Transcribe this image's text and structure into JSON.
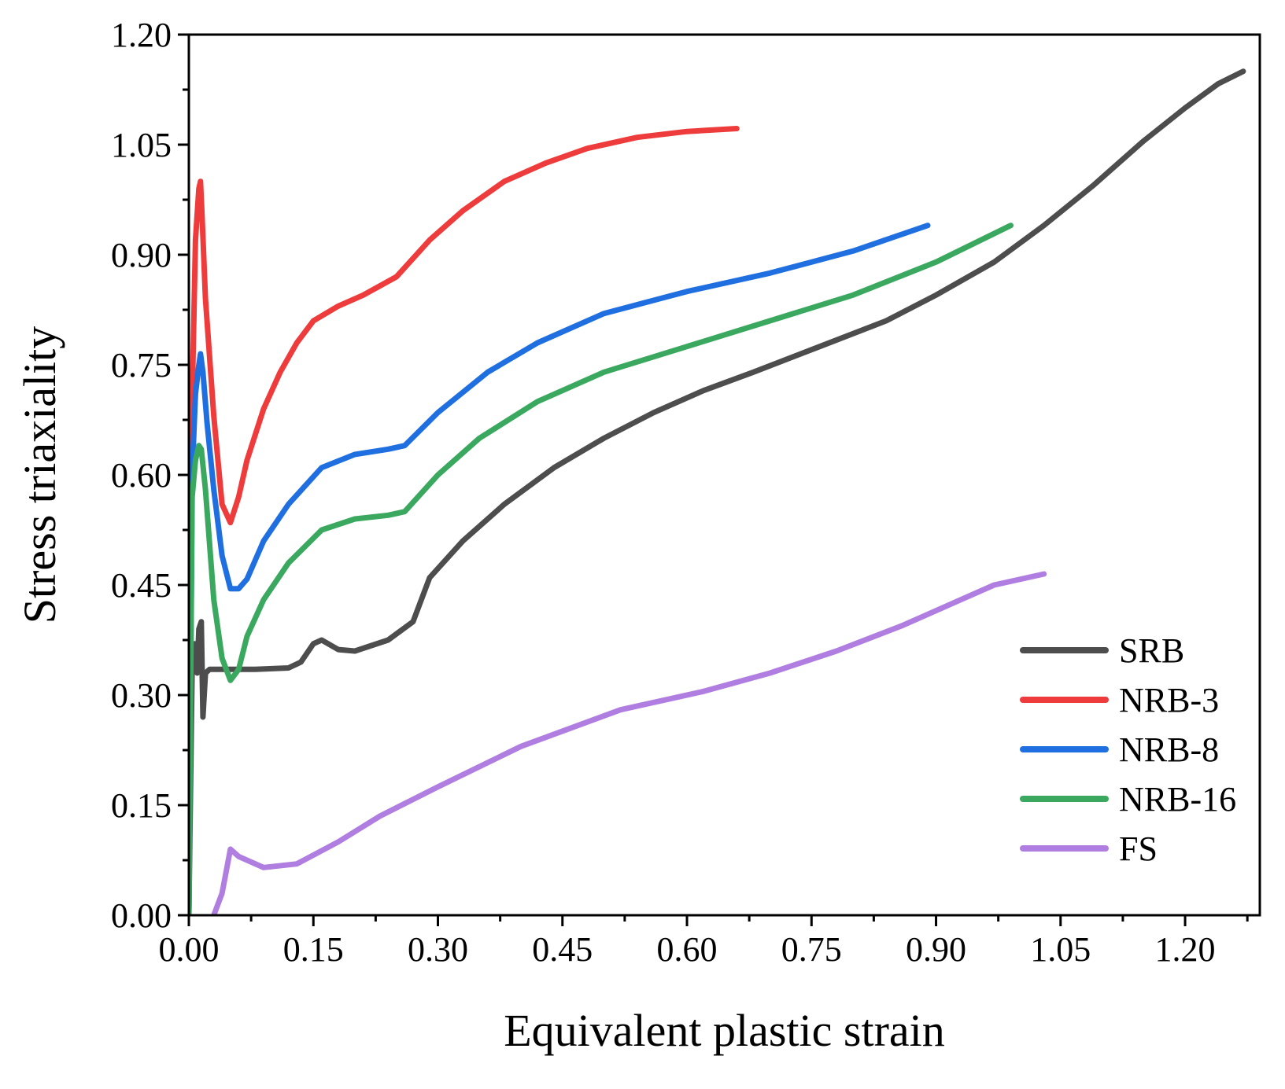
{
  "chart_data": {
    "type": "line",
    "title": "",
    "xlabel": "Equivalent plastic strain",
    "ylabel": "Stress triaxiality",
    "xlim": [
      0,
      1.29
    ],
    "ylim": [
      0,
      1.2
    ],
    "x_ticks": [
      "0.00",
      "0.15",
      "0.30",
      "0.45",
      "0.60",
      "0.75",
      "0.90",
      "1.05",
      "1.20"
    ],
    "y_ticks": [
      "0.00",
      "0.15",
      "0.30",
      "0.45",
      "0.60",
      "0.75",
      "0.90",
      "1.05",
      "1.20"
    ],
    "grid": false,
    "legend_position": "bottom-right",
    "series": [
      {
        "name": "SRB",
        "color": "#4d4d4d",
        "points": [
          [
            0.0,
            0.0
          ],
          [
            0.004,
            0.34
          ],
          [
            0.007,
            0.37
          ],
          [
            0.01,
            0.33
          ],
          [
            0.012,
            0.39
          ],
          [
            0.015,
            0.4
          ],
          [
            0.017,
            0.27
          ],
          [
            0.02,
            0.33
          ],
          [
            0.025,
            0.335
          ],
          [
            0.04,
            0.335
          ],
          [
            0.08,
            0.335
          ],
          [
            0.12,
            0.337
          ],
          [
            0.135,
            0.345
          ],
          [
            0.15,
            0.37
          ],
          [
            0.16,
            0.375
          ],
          [
            0.18,
            0.362
          ],
          [
            0.2,
            0.36
          ],
          [
            0.24,
            0.375
          ],
          [
            0.27,
            0.4
          ],
          [
            0.29,
            0.46
          ],
          [
            0.33,
            0.51
          ],
          [
            0.38,
            0.56
          ],
          [
            0.44,
            0.61
          ],
          [
            0.5,
            0.65
          ],
          [
            0.56,
            0.685
          ],
          [
            0.62,
            0.715
          ],
          [
            0.68,
            0.74
          ],
          [
            0.76,
            0.775
          ],
          [
            0.84,
            0.81
          ],
          [
            0.9,
            0.845
          ],
          [
            0.97,
            0.89
          ],
          [
            1.03,
            0.94
          ],
          [
            1.09,
            0.995
          ],
          [
            1.15,
            1.055
          ],
          [
            1.2,
            1.1
          ],
          [
            1.24,
            1.133
          ],
          [
            1.27,
            1.15
          ]
        ]
      },
      {
        "name": "NRB-3",
        "color": "#ee3b3b",
        "points": [
          [
            0.0,
            0.0
          ],
          [
            0.004,
            0.7
          ],
          [
            0.008,
            0.92
          ],
          [
            0.012,
            0.99
          ],
          [
            0.014,
            1.0
          ],
          [
            0.016,
            0.95
          ],
          [
            0.02,
            0.84
          ],
          [
            0.03,
            0.68
          ],
          [
            0.04,
            0.56
          ],
          [
            0.05,
            0.535
          ],
          [
            0.06,
            0.57
          ],
          [
            0.07,
            0.62
          ],
          [
            0.09,
            0.69
          ],
          [
            0.11,
            0.74
          ],
          [
            0.13,
            0.78
          ],
          [
            0.15,
            0.81
          ],
          [
            0.18,
            0.83
          ],
          [
            0.21,
            0.845
          ],
          [
            0.25,
            0.87
          ],
          [
            0.29,
            0.92
          ],
          [
            0.33,
            0.96
          ],
          [
            0.38,
            1.0
          ],
          [
            0.43,
            1.025
          ],
          [
            0.48,
            1.045
          ],
          [
            0.54,
            1.06
          ],
          [
            0.6,
            1.068
          ],
          [
            0.66,
            1.072
          ]
        ]
      },
      {
        "name": "NRB-8",
        "color": "#1f6fe0",
        "points": [
          [
            0.0,
            0.0
          ],
          [
            0.004,
            0.6
          ],
          [
            0.008,
            0.71
          ],
          [
            0.012,
            0.75
          ],
          [
            0.014,
            0.765
          ],
          [
            0.017,
            0.74
          ],
          [
            0.022,
            0.67
          ],
          [
            0.03,
            0.58
          ],
          [
            0.04,
            0.49
          ],
          [
            0.05,
            0.445
          ],
          [
            0.06,
            0.445
          ],
          [
            0.07,
            0.458
          ],
          [
            0.09,
            0.51
          ],
          [
            0.12,
            0.56
          ],
          [
            0.16,
            0.61
          ],
          [
            0.2,
            0.628
          ],
          [
            0.24,
            0.635
          ],
          [
            0.26,
            0.64
          ],
          [
            0.3,
            0.685
          ],
          [
            0.36,
            0.74
          ],
          [
            0.42,
            0.78
          ],
          [
            0.5,
            0.82
          ],
          [
            0.6,
            0.85
          ],
          [
            0.7,
            0.875
          ],
          [
            0.8,
            0.905
          ],
          [
            0.89,
            0.94
          ]
        ]
      },
      {
        "name": "NRB-16",
        "color": "#3aa85e",
        "points": [
          [
            0.0,
            0.0
          ],
          [
            0.004,
            0.57
          ],
          [
            0.008,
            0.62
          ],
          [
            0.012,
            0.64
          ],
          [
            0.015,
            0.635
          ],
          [
            0.02,
            0.58
          ],
          [
            0.03,
            0.43
          ],
          [
            0.04,
            0.35
          ],
          [
            0.05,
            0.32
          ],
          [
            0.06,
            0.335
          ],
          [
            0.07,
            0.38
          ],
          [
            0.09,
            0.43
          ],
          [
            0.12,
            0.48
          ],
          [
            0.16,
            0.525
          ],
          [
            0.2,
            0.54
          ],
          [
            0.24,
            0.545
          ],
          [
            0.26,
            0.55
          ],
          [
            0.3,
            0.6
          ],
          [
            0.35,
            0.65
          ],
          [
            0.42,
            0.7
          ],
          [
            0.5,
            0.74
          ],
          [
            0.6,
            0.775
          ],
          [
            0.7,
            0.81
          ],
          [
            0.8,
            0.845
          ],
          [
            0.9,
            0.89
          ],
          [
            0.99,
            0.94
          ]
        ]
      },
      {
        "name": "FS",
        "color": "#b07ee0",
        "points": [
          [
            0.03,
            0.0
          ],
          [
            0.04,
            0.03
          ],
          [
            0.05,
            0.09
          ],
          [
            0.06,
            0.08
          ],
          [
            0.09,
            0.065
          ],
          [
            0.13,
            0.07
          ],
          [
            0.18,
            0.1
          ],
          [
            0.23,
            0.135
          ],
          [
            0.3,
            0.175
          ],
          [
            0.4,
            0.23
          ],
          [
            0.52,
            0.28
          ],
          [
            0.62,
            0.305
          ],
          [
            0.7,
            0.33
          ],
          [
            0.78,
            0.36
          ],
          [
            0.86,
            0.395
          ],
          [
            0.92,
            0.425
          ],
          [
            0.97,
            0.45
          ],
          [
            1.03,
            0.465
          ]
        ]
      }
    ]
  }
}
